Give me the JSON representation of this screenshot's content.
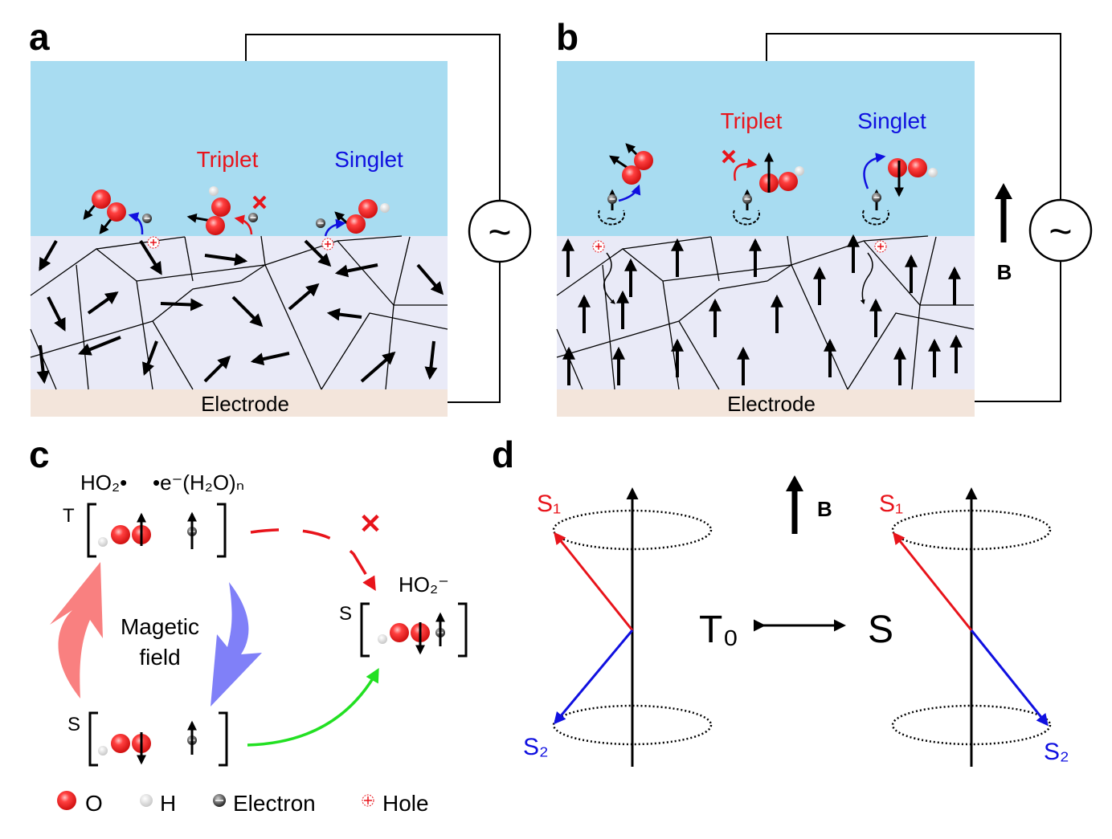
{
  "panels": {
    "a": {
      "letter": "a",
      "triplet": "Triplet",
      "singlet": "Singlet",
      "electrode": "Electrode",
      "source_symbol": "~"
    },
    "b": {
      "letter": "b",
      "triplet": "Triplet",
      "singlet": "Singlet",
      "electrode": "Electrode",
      "source_symbol": "~",
      "field_label": "B"
    },
    "c": {
      "letter": "c",
      "radical_label": "HO₂•",
      "electron_label": "•e⁻(H₂O)ₙ",
      "triplet_state": "T",
      "singlet_state": "S",
      "product_state": "S",
      "product_label": "HO₂⁻",
      "field_text_1": "Magetic",
      "field_text_2": "field",
      "blocked_mark": "✕"
    },
    "d": {
      "letter": "d",
      "s1_left": "S₁",
      "s2_left": "S₂",
      "s1_right": "S₁",
      "s2_right": "S₂",
      "t0": "T₀",
      "s": "S",
      "field_label": "B"
    }
  },
  "legend": [
    {
      "icon": "oxygen-atom",
      "label": "O"
    },
    {
      "icon": "hydrogen-atom",
      "label": "H"
    },
    {
      "icon": "electron",
      "label": "Electron"
    },
    {
      "icon": "hole",
      "label": "Hole"
    }
  ],
  "colors": {
    "water": "#a8dcf1",
    "film": "#e9eaf7",
    "electrode": "#f3e5db",
    "triplet": "#e8141b",
    "singlet": "#1010e0",
    "oxygen": "#f02020",
    "transfer": "#22e022",
    "pink_arrow": "#f98080",
    "blue_arrow": "#8080f8"
  }
}
